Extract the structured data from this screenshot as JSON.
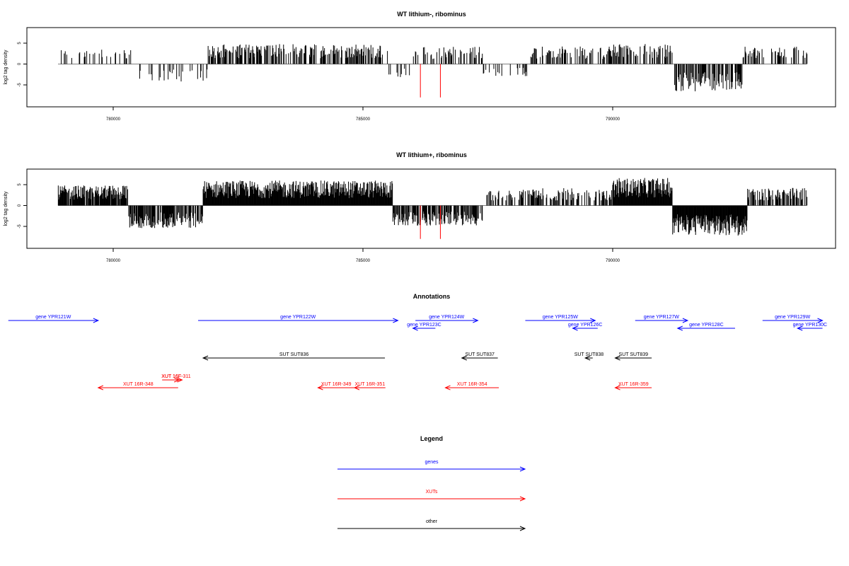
{
  "colors": {
    "gene": "#0000ff",
    "xut": "#ff0000",
    "other": "#000000",
    "axis": "#000000",
    "baseline": "#808080"
  },
  "chart_data": [
    {
      "type": "bar",
      "title": "WT lithium-, ribominus",
      "ylabel": "log2 tag density",
      "xlim": [
        778200,
        794500
      ],
      "ylim": [
        -8.5,
        7
      ],
      "xticks": [
        780000,
        785000,
        790000
      ],
      "yticks": [
        -5,
        0,
        5
      ],
      "xticklabels": [
        "780000",
        "785000",
        "790000"
      ],
      "yticklabels": [
        "-5",
        "0",
        "5"
      ],
      "highlight_positions": [
        786150,
        786550
      ],
      "highlight_values": [
        -8,
        -8
      ],
      "density_profile": [
        {
          "range": [
            778900,
            780400
          ],
          "value": 3.0,
          "density": 0.22
        },
        {
          "range": [
            780400,
            781900
          ],
          "value": -3.5,
          "density": 0.25
        },
        {
          "range": [
            781900,
            785500
          ],
          "value": 4.0,
          "density": 0.5
        },
        {
          "range": [
            785500,
            786000
          ],
          "value": -3.0,
          "density": 0.2
        },
        {
          "range": [
            786000,
            787400
          ],
          "value": 3.5,
          "density": 0.35
        },
        {
          "range": [
            787400,
            788300
          ],
          "value": -2.5,
          "density": 0.15
        },
        {
          "range": [
            788300,
            790000
          ],
          "value": 3.5,
          "density": 0.4
        },
        {
          "range": [
            790000,
            791200
          ],
          "value": 4.0,
          "density": 0.35
        },
        {
          "range": [
            791200,
            792600
          ],
          "value": -5.5,
          "density": 0.6
        },
        {
          "range": [
            792600,
            793900
          ],
          "value": 3.5,
          "density": 0.35
        }
      ]
    },
    {
      "type": "bar",
      "title": "WT lithium+, ribominus",
      "ylabel": "log2 tag density",
      "xlim": [
        778200,
        794500
      ],
      "ylim": [
        -8.5,
        7
      ],
      "xticks": [
        780000,
        785000,
        790000
      ],
      "yticks": [
        -5,
        0,
        5
      ],
      "xticklabels": [
        "780000",
        "785000",
        "790000"
      ],
      "yticklabels": [
        "-5",
        "0",
        "5"
      ],
      "highlight_positions": [
        786150,
        786550
      ],
      "highlight_values": [
        -8,
        -8
      ],
      "density_profile": [
        {
          "range": [
            778900,
            780300
          ],
          "value": 4.0,
          "density": 0.9
        },
        {
          "range": [
            780300,
            781800
          ],
          "value": -4.5,
          "density": 0.8
        },
        {
          "range": [
            781800,
            785600
          ],
          "value": 5.0,
          "density": 1.0
        },
        {
          "range": [
            785600,
            787400
          ],
          "value": -4.0,
          "density": 0.7
        },
        {
          "range": [
            787400,
            788200
          ],
          "value": 3.0,
          "density": 0.3
        },
        {
          "range": [
            788200,
            790000
          ],
          "value": 3.5,
          "density": 0.5
        },
        {
          "range": [
            790000,
            791200
          ],
          "value": 5.5,
          "density": 1.0
        },
        {
          "range": [
            791200,
            792700
          ],
          "value": -6.0,
          "density": 1.0
        },
        {
          "range": [
            792700,
            793900
          ],
          "value": 3.5,
          "density": 0.6
        }
      ]
    }
  ],
  "annotations": {
    "title": "Annotations",
    "features": [
      {
        "label": "gene YPR121W",
        "type": "gene",
        "strand": "+",
        "start": 777900,
        "end": 779700,
        "row": 0
      },
      {
        "label": "gene YPR122W",
        "type": "gene",
        "strand": "+",
        "start": 781700,
        "end": 785700,
        "row": 0
      },
      {
        "label": "gene YPR124W",
        "type": "gene",
        "strand": "+",
        "start": 786050,
        "end": 787300,
        "row": 0
      },
      {
        "label": "gene YPR123C",
        "type": "gene",
        "strand": "-",
        "start": 786000,
        "end": 786450,
        "row": 1
      },
      {
        "label": "gene YPR125W",
        "type": "gene",
        "strand": "+",
        "start": 788250,
        "end": 789650,
        "row": 0
      },
      {
        "label": "gene YPR126C",
        "type": "gene",
        "strand": "-",
        "start": 789200,
        "end": 789700,
        "row": 1
      },
      {
        "label": "gene YPR127W",
        "type": "gene",
        "strand": "+",
        "start": 790450,
        "end": 791500,
        "row": 0
      },
      {
        "label": "gene YPR128C",
        "type": "gene",
        "strand": "-",
        "start": 791300,
        "end": 792450,
        "row": 1
      },
      {
        "label": "gene YPR129W",
        "type": "gene",
        "strand": "+",
        "start": 793000,
        "end": 794200,
        "row": 0
      },
      {
        "label": "gene YPR130C",
        "type": "gene",
        "strand": "-",
        "start": 793700,
        "end": 794200,
        "row": 1
      },
      {
        "label": "SUT SUT836",
        "type": "other",
        "strand": "-",
        "start": 781800,
        "end": 785440,
        "row": 2
      },
      {
        "label": "SUT SUT837",
        "type": "other",
        "strand": "-",
        "start": 786980,
        "end": 787700,
        "row": 2
      },
      {
        "label": "SUT SUT838",
        "type": "other",
        "strand": "-",
        "start": 789450,
        "end": 789600,
        "row": 2
      },
      {
        "label": "SUT SUT839",
        "type": "other",
        "strand": "-",
        "start": 790050,
        "end": 790780,
        "row": 2
      },
      {
        "label": "XUT 16R-348",
        "type": "xut",
        "strand": "-",
        "start": 779700,
        "end": 781300,
        "row": 4
      },
      {
        "label": "XUT 16F-",
        "type": "xut",
        "strand": "+",
        "start": 780980,
        "end": 781380,
        "row": 3
      },
      {
        "label": "XUT 16F-311",
        "type": "xut",
        "strand": "+",
        "start": 781200,
        "end": 781320,
        "row": 3
      },
      {
        "label": "XUT 16R-349",
        "type": "xut",
        "strand": "-",
        "start": 784100,
        "end": 784830,
        "row": 4
      },
      {
        "label": "XUT 16R-351",
        "type": "xut",
        "strand": "-",
        "start": 784830,
        "end": 785450,
        "row": 4
      },
      {
        "label": "XUT 16R-354",
        "type": "xut",
        "strand": "-",
        "start": 786650,
        "end": 787720,
        "row": 4
      },
      {
        "label": "XUT 16R-359",
        "type": "xut",
        "strand": "-",
        "start": 790050,
        "end": 790780,
        "row": 4
      }
    ]
  },
  "legend": {
    "title": "Legend",
    "items": [
      {
        "label": "genes",
        "type": "gene"
      },
      {
        "label": "XUTs",
        "type": "xut"
      },
      {
        "label": "other",
        "type": "other"
      }
    ]
  }
}
